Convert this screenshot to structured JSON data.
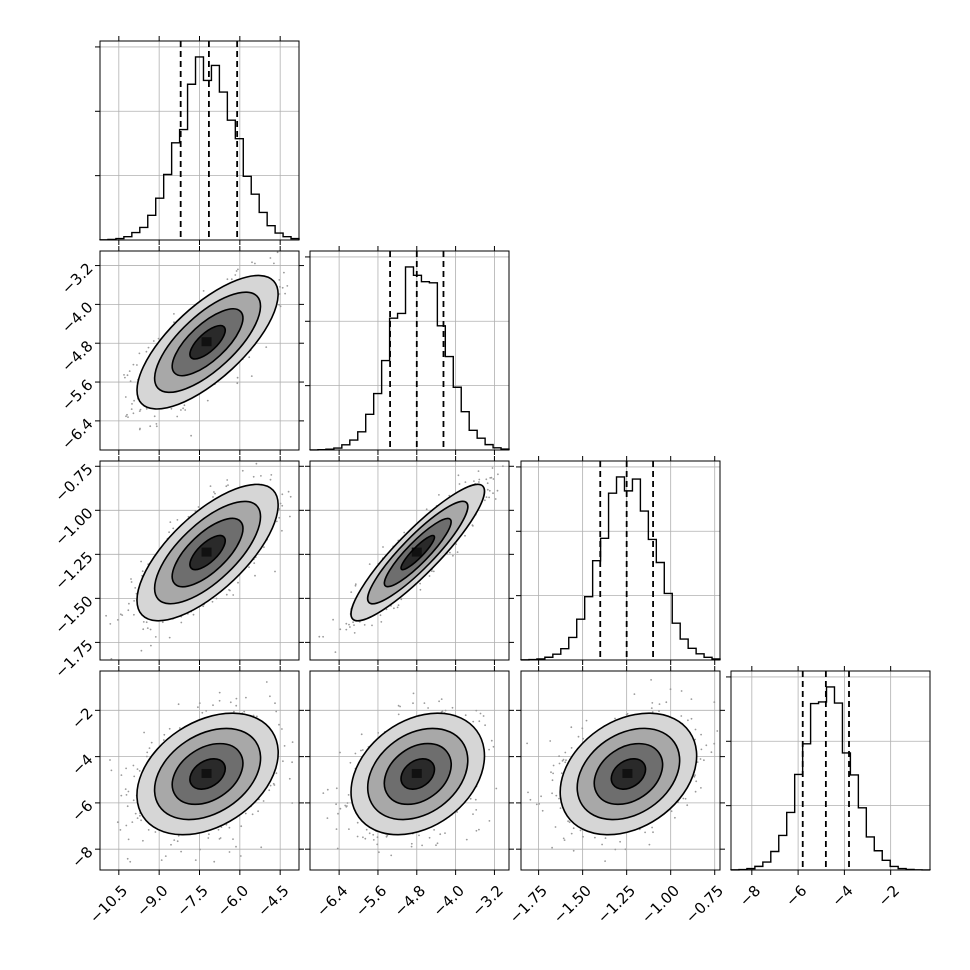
{
  "chart_data": {
    "type": "corner",
    "parameters": 4,
    "grid": true,
    "colors": {
      "axes": "#000000",
      "grid": "#b0b0b0",
      "points": "#9a9a9a",
      "fill_dark": "#111111",
      "fill_light": "#f2f2f2"
    },
    "params": [
      {
        "range": [
          -11.2,
          -3.8
        ],
        "mean": -7.2,
        "sigma": 1.05,
        "quantiles": [
          -8.2,
          -7.15,
          -6.1
        ],
        "ticks": [
          -10.5,
          -9.0,
          -7.5,
          -6.0,
          -4.5
        ],
        "tick_labels": [
          "−10.5",
          "−9.0",
          "−7.5",
          "−6.0",
          "−4.5"
        ]
      },
      {
        "range": [
          -7.0,
          -2.9
        ],
        "mean": -4.78,
        "sigma": 0.55,
        "quantiles": [
          -5.35,
          -4.8,
          -4.25
        ],
        "ticks": [
          -6.4,
          -5.6,
          -4.8,
          -4.0,
          -3.2
        ],
        "tick_labels": [
          "−6.4",
          "−5.6",
          "−4.8",
          "−4.0",
          "−3.2"
        ]
      },
      {
        "range": [
          -1.85,
          -0.72
        ],
        "mean": -1.24,
        "sigma": 0.155,
        "quantiles": [
          -1.4,
          -1.25,
          -1.1
        ],
        "ticks": [
          -1.75,
          -1.5,
          -1.25,
          -1.0,
          -0.75
        ],
        "tick_labels": [
          "−1.75",
          "−1.50",
          "−1.25",
          "−1.00",
          "−0.75"
        ]
      },
      {
        "range": [
          -8.9,
          -0.3
        ],
        "mean": -4.75,
        "sigma": 1.05,
        "quantiles": [
          -5.8,
          -4.8,
          -3.8
        ],
        "ticks": [
          -8,
          -6,
          -4,
          -2
        ],
        "tick_labels": [
          "−8",
          "−6",
          "−4",
          "−2"
        ]
      }
    ],
    "correlations": {
      "1-0": 0.72,
      "2-0": 0.7,
      "2-1": 0.9,
      "3-0": 0.35,
      "3-1": 0.3,
      "3-2": 0.3
    },
    "hist_bins": 25,
    "levels_sigma": [
      0.5,
      1.0,
      1.5,
      2.0
    ]
  }
}
